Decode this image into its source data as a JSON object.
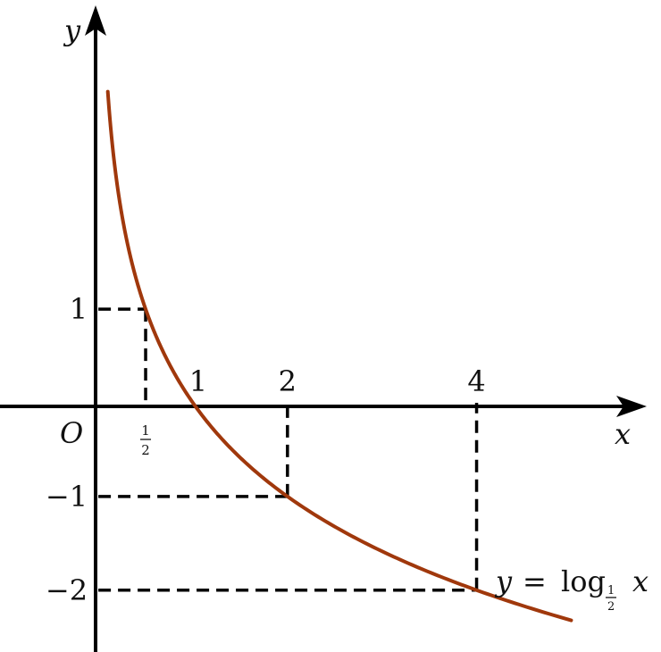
{
  "chart_data": {
    "type": "line",
    "title": "",
    "xlabel": "x",
    "ylabel": "y",
    "origin_label": "O",
    "function": "y = log_{1/2} x",
    "curve_label": {
      "lhs": "y",
      "eq": "=",
      "log": "log",
      "base_num": "1",
      "base_den": "2",
      "arg": "x"
    },
    "x_range": [
      0.1,
      5
    ],
    "xlim": [
      -1.04,
      5.95
    ],
    "ylim": [
      -2.66,
      4.3
    ],
    "x_ticks": [
      {
        "value": 0.5,
        "label_num": "1",
        "label_den": "2"
      },
      {
        "value": 1,
        "label": "1"
      },
      {
        "value": 2,
        "label": "2"
      },
      {
        "value": 4,
        "label": "4"
      }
    ],
    "y_ticks": [
      {
        "value": 1,
        "label": "1"
      },
      {
        "value": -1,
        "label": "−1"
      },
      {
        "value": -2,
        "label": "−2"
      }
    ],
    "guide_points": [
      [
        0.5,
        1
      ],
      [
        2,
        -1
      ],
      [
        4,
        -2
      ]
    ],
    "grid": false,
    "colors": {
      "curve": "#a0380c",
      "axes": "#000000"
    }
  }
}
